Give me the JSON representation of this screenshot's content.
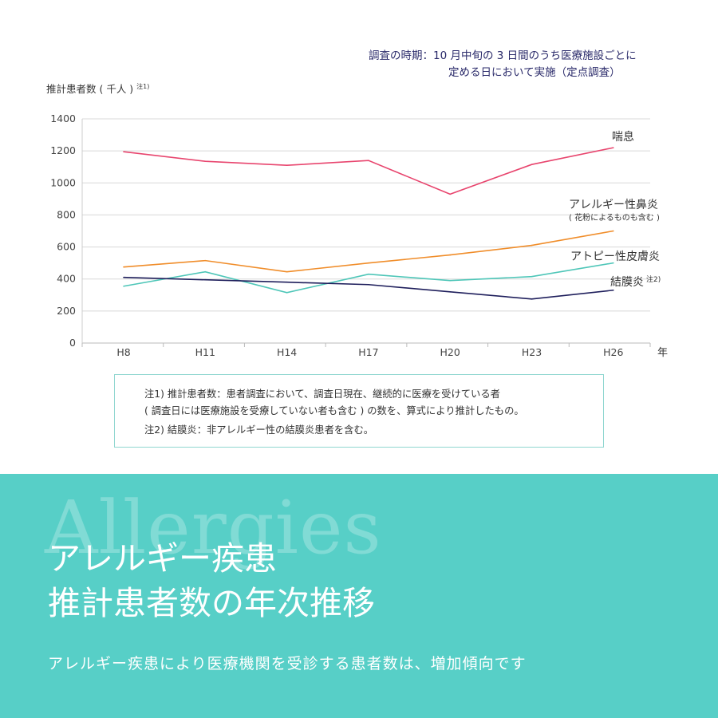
{
  "survey_note": {
    "line1": "調査の時期：10 月中旬の 3 日間のうち医療施設ごとに",
    "line2": "定める日において実施（定点調査）"
  },
  "chart_data": {
    "type": "line",
    "title": "",
    "ylabel": "推計患者数 ( 千人 )",
    "ylabel_note": "注1)",
    "xlabel": "年",
    "categories": [
      "H8",
      "H11",
      "H14",
      "H17",
      "H20",
      "H23",
      "H26"
    ],
    "ylim": [
      0,
      1400
    ],
    "yticks": [
      0,
      200,
      400,
      600,
      800,
      1000,
      1200,
      1400
    ],
    "grid": true,
    "series": [
      {
        "name": "喘息",
        "sublabel": "",
        "color": "#e8456e",
        "values": [
          1195,
          1135,
          1110,
          1140,
          930,
          1115,
          1220
        ]
      },
      {
        "name": "アレルギー性鼻炎",
        "sublabel": "( 花粉によるものも含む )",
        "color": "#f08d2a",
        "values": [
          475,
          515,
          445,
          500,
          550,
          610,
          700
        ]
      },
      {
        "name": "アトピー性皮膚炎",
        "sublabel": "",
        "color": "#4ec6b8",
        "values": [
          355,
          445,
          315,
          430,
          390,
          415,
          500
        ]
      },
      {
        "name": "結膜炎",
        "note": "注2)",
        "sublabel": "",
        "color": "#1f1f5c",
        "values": [
          410,
          395,
          380,
          365,
          320,
          275,
          330
        ]
      }
    ]
  },
  "notes": {
    "n1a": "注1) 推計患者数：患者調査において、調査日現在、継続的に医療を受けている者",
    "n1b": "( 調査日には医療施設を受療していない者も含む ) の数を、算式により推計したもの。",
    "n2": "注2) 結膜炎：非アレルギー性の結膜炎患者を含む。"
  },
  "banner": {
    "watermark": "Allergies",
    "title1": "アレルギー疾患",
    "title2": "推計患者数の年次推移",
    "subtitle": "アレルギー疾患により医療機関を受診する患者数は、増加傾向です",
    "background": "#57cfc7"
  }
}
